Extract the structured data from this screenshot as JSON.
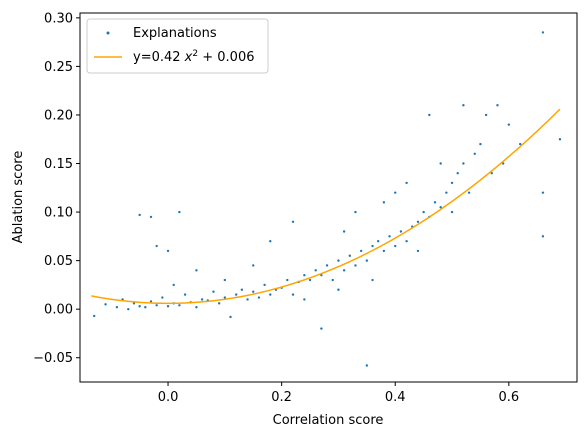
{
  "chart_data": {
    "type": "scatter",
    "xlabel": "Correlation score",
    "ylabel": "Ablation score",
    "xlim": [
      -0.155,
      0.72
    ],
    "ylim": [
      -0.075,
      0.305
    ],
    "xticks": [
      {
        "value": 0.0,
        "label": "0.0"
      },
      {
        "value": 0.2,
        "label": "0.2"
      },
      {
        "value": 0.4,
        "label": "0.4"
      },
      {
        "value": 0.6,
        "label": "0.6"
      }
    ],
    "yticks": [
      {
        "value": -0.05,
        "label": "−0.05"
      },
      {
        "value": 0.0,
        "label": "0.00"
      },
      {
        "value": 0.05,
        "label": "0.05"
      },
      {
        "value": 0.1,
        "label": "0.10"
      },
      {
        "value": 0.15,
        "label": "0.15"
      },
      {
        "value": 0.2,
        "label": "0.20"
      },
      {
        "value": 0.25,
        "label": "0.25"
      },
      {
        "value": 0.3,
        "label": "0.30"
      }
    ],
    "grid": false,
    "legend_position": "top-left",
    "series": [
      {
        "name": "Explanations",
        "kind": "scatter",
        "color": "#1f77b4",
        "points": [
          [
            -0.13,
            -0.007
          ],
          [
            -0.11,
            0.005
          ],
          [
            -0.09,
            0.002
          ],
          [
            -0.08,
            0.01
          ],
          [
            -0.07,
            0.0
          ],
          [
            -0.06,
            0.006
          ],
          [
            -0.05,
            0.003
          ],
          [
            -0.05,
            0.097
          ],
          [
            -0.04,
            0.002
          ],
          [
            -0.03,
            0.095
          ],
          [
            -0.03,
            0.008
          ],
          [
            -0.02,
            0.004
          ],
          [
            -0.02,
            0.065
          ],
          [
            -0.01,
            0.012
          ],
          [
            0.0,
            0.003
          ],
          [
            0.0,
            0.06
          ],
          [
            0.01,
            0.006
          ],
          [
            0.01,
            0.025
          ],
          [
            0.02,
            0.1
          ],
          [
            0.02,
            0.004
          ],
          [
            0.03,
            0.015
          ],
          [
            0.04,
            0.007
          ],
          [
            0.05,
            0.002
          ],
          [
            0.05,
            0.04
          ],
          [
            0.06,
            0.01
          ],
          [
            0.07,
            0.009
          ],
          [
            0.08,
            0.018
          ],
          [
            0.09,
            0.006
          ],
          [
            0.1,
            0.012
          ],
          [
            0.1,
            0.03
          ],
          [
            0.11,
            -0.008
          ],
          [
            0.12,
            0.015
          ],
          [
            0.13,
            0.02
          ],
          [
            0.14,
            0.01
          ],
          [
            0.15,
            0.018
          ],
          [
            0.15,
            0.045
          ],
          [
            0.16,
            0.012
          ],
          [
            0.17,
            0.025
          ],
          [
            0.18,
            0.015
          ],
          [
            0.18,
            0.07
          ],
          [
            0.19,
            0.02
          ],
          [
            0.2,
            0.022
          ],
          [
            0.21,
            0.03
          ],
          [
            0.22,
            0.015
          ],
          [
            0.22,
            0.09
          ],
          [
            0.23,
            0.028
          ],
          [
            0.24,
            0.035
          ],
          [
            0.24,
            0.01
          ],
          [
            0.25,
            0.03
          ],
          [
            0.26,
            0.04
          ],
          [
            0.27,
            0.035
          ],
          [
            0.27,
            -0.02
          ],
          [
            0.28,
            0.045
          ],
          [
            0.29,
            0.03
          ],
          [
            0.3,
            0.05
          ],
          [
            0.3,
            0.02
          ],
          [
            0.31,
            0.04
          ],
          [
            0.31,
            0.08
          ],
          [
            0.32,
            0.055
          ],
          [
            0.33,
            0.045
          ],
          [
            0.33,
            0.1
          ],
          [
            0.34,
            0.06
          ],
          [
            0.35,
            0.05
          ],
          [
            0.35,
            -0.058
          ],
          [
            0.36,
            0.065
          ],
          [
            0.36,
            0.03
          ],
          [
            0.37,
            0.07
          ],
          [
            0.38,
            0.06
          ],
          [
            0.38,
            0.11
          ],
          [
            0.39,
            0.075
          ],
          [
            0.4,
            0.065
          ],
          [
            0.4,
            0.12
          ],
          [
            0.41,
            0.08
          ],
          [
            0.42,
            0.07
          ],
          [
            0.42,
            0.13
          ],
          [
            0.43,
            0.085
          ],
          [
            0.44,
            0.09
          ],
          [
            0.44,
            0.06
          ],
          [
            0.45,
            0.1
          ],
          [
            0.46,
            0.095
          ],
          [
            0.46,
            0.2
          ],
          [
            0.47,
            0.11
          ],
          [
            0.48,
            0.105
          ],
          [
            0.48,
            0.15
          ],
          [
            0.49,
            0.12
          ],
          [
            0.5,
            0.13
          ],
          [
            0.5,
            0.1
          ],
          [
            0.51,
            0.14
          ],
          [
            0.52,
            0.15
          ],
          [
            0.52,
            0.21
          ],
          [
            0.53,
            0.12
          ],
          [
            0.54,
            0.16
          ],
          [
            0.55,
            0.17
          ],
          [
            0.56,
            0.2
          ],
          [
            0.57,
            0.14
          ],
          [
            0.58,
            0.21
          ],
          [
            0.59,
            0.15
          ],
          [
            0.6,
            0.19
          ],
          [
            0.62,
            0.17
          ],
          [
            0.66,
            0.285
          ],
          [
            0.66,
            0.12
          ],
          [
            0.66,
            0.075
          ],
          [
            0.69,
            0.175
          ]
        ]
      },
      {
        "name": "y=0.42 x² + 0.006",
        "kind": "line",
        "color": "#ffa500",
        "equation": {
          "a": 0.42,
          "b": 0.006
        },
        "x_range": [
          -0.135,
          0.69
        ]
      }
    ],
    "legend": [
      {
        "label": "Explanations"
      },
      {
        "label_prefix": "y=0.42 ",
        "label_var": "x",
        "label_sup": "2",
        "label_suffix": " + 0.006"
      }
    ]
  }
}
